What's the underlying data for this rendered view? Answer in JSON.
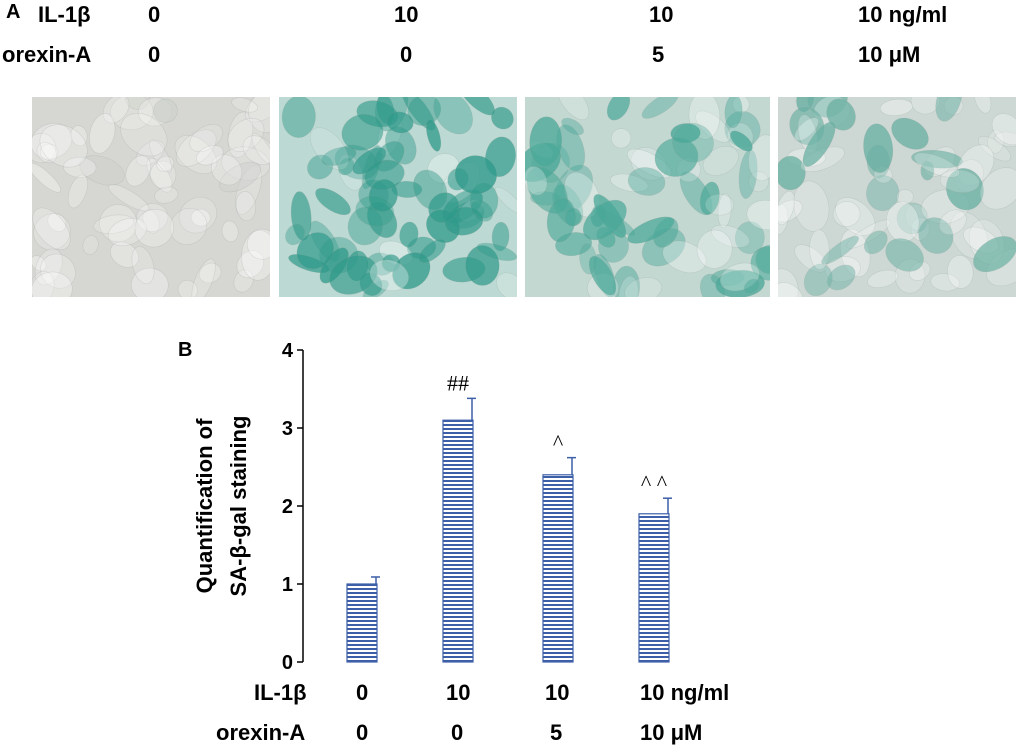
{
  "panel_a": {
    "letter": "A",
    "row_labels": [
      "IL-1β",
      "orexin-A"
    ],
    "columns": [
      {
        "il1b": "0",
        "orexin": "0"
      },
      {
        "il1b": "10",
        "orexin": "0"
      },
      {
        "il1b": "10",
        "orexin": "5"
      },
      {
        "il1b": "10 ng/ml",
        "orexin": "10 μM"
      }
    ],
    "images": [
      {
        "name": "micrograph-control",
        "base": "#d6d6d2",
        "stain": "#cfd2cc",
        "stain_level": 0.05
      },
      {
        "name": "micrograph-il1b",
        "base": "#bcd9d3",
        "stain": "#2f9a8a",
        "stain_level": 0.85
      },
      {
        "name": "micrograph-il1b-orexin-5",
        "base": "#c4d8d2",
        "stain": "#4aa898",
        "stain_level": 0.6
      },
      {
        "name": "micrograph-il1b-orexin-10",
        "base": "#cdd8d4",
        "stain": "#6ab0a3",
        "stain_level": 0.35
      }
    ]
  },
  "panel_b": {
    "letter": "B",
    "row_labels": [
      "IL-1β",
      "orexin-A"
    ],
    "columns": [
      {
        "il1b": "0",
        "orexin": "0"
      },
      {
        "il1b": "10",
        "orexin": "0"
      },
      {
        "il1b": "10",
        "orexin": "5"
      },
      {
        "il1b": "10 ng/ml",
        "orexin": "10 μM"
      }
    ]
  },
  "chart_data": {
    "type": "bar",
    "ylabel": "Quantification of SA-β-gal staining",
    "ylabel_lines": [
      "Quantification of",
      "SA-β-gal staining"
    ],
    "ylim": [
      0,
      4
    ],
    "yticks": [
      0,
      1,
      2,
      3,
      4
    ],
    "values": [
      1.0,
      3.1,
      2.4,
      1.9
    ],
    "errors": [
      0.09,
      0.28,
      0.22,
      0.2
    ],
    "annotations": [
      "",
      "##",
      "^",
      "^ ^"
    ],
    "bar_fill": "horizontal-stripes",
    "bar_color": "#3c5fa8"
  }
}
